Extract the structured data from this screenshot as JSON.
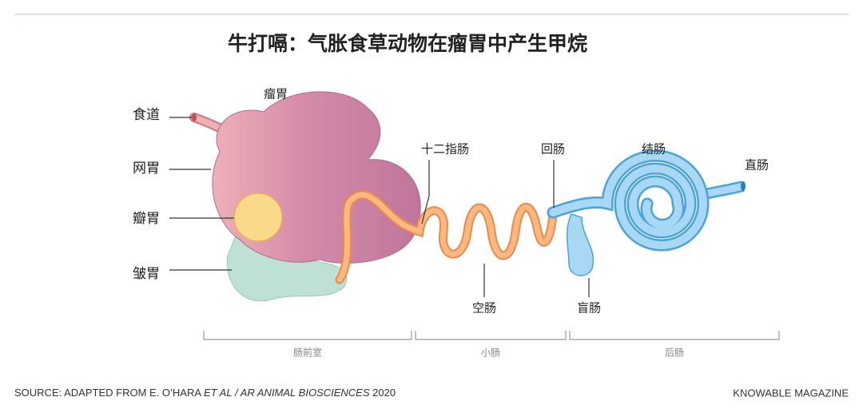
{
  "title": "牛打嗝：气胀食草动物在瘤胃中产生甲烷",
  "labels": {
    "esophagus": "食道",
    "reticulum": "网胃",
    "omasum": "瓣胃",
    "abomasum": "皱胃",
    "rumen": "瘤胃",
    "duodenum": "十二指肠",
    "jejunum": "空肠",
    "ileum": "回肠",
    "cecum": "盲肠",
    "colon": "结肠",
    "rectum": "直肠"
  },
  "sections": [
    "肠前室",
    "小肠",
    "后肠"
  ],
  "source": {
    "prefix": "SOURCE: ADAPTED FROM E. O’HARA ",
    "italic": "ET AL / AR ANIMAL BIOSCIENCES",
    "suffix": " 2020"
  },
  "credit": "KNOWABLE MAGAZINE"
}
